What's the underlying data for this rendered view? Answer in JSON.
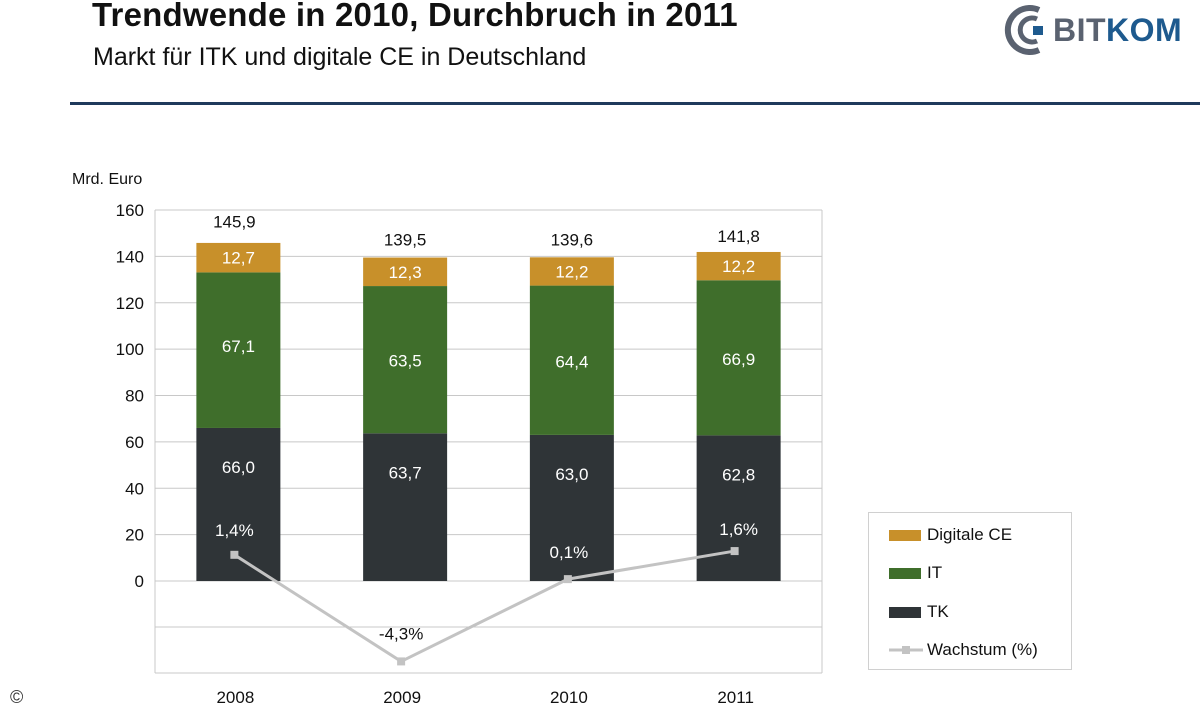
{
  "header": {
    "title": "Trendwende in 2010, Durchbruch in 2011",
    "subtitle": "Markt für ITK und digitale CE in Deutschland"
  },
  "logo": {
    "text_part1": "BIT",
    "text_part2": "KOM",
    "icon": "bitkom-logo-mark"
  },
  "copyright": "©",
  "colors": {
    "digitale_ce": "#c8902a",
    "it": "#3f6e2b",
    "tk": "#2f3437",
    "wachstum": "#c3c3c3",
    "rule": "#1f3a5c",
    "grid": "#c8c8c8"
  },
  "chart_data": {
    "type": "bar",
    "stacked": true,
    "ylabel": "Mrd. Euro",
    "categories": [
      "2008",
      "2009",
      "2010",
      "2011"
    ],
    "ylim": [
      -35,
      160
    ],
    "yticks": [
      "0",
      "20",
      "40",
      "60",
      "80",
      "100",
      "120",
      "140",
      "160"
    ],
    "series": [
      {
        "name": "TK",
        "values": [
          66.0,
          63.7,
          63.0,
          62.8
        ],
        "labels": [
          "66,0",
          "63,7",
          "63,0",
          "62,8"
        ]
      },
      {
        "name": "IT",
        "values": [
          67.1,
          63.5,
          64.4,
          66.9
        ],
        "labels": [
          "67,1",
          "63,5",
          "64,4",
          "66,9"
        ]
      },
      {
        "name": "Digitale CE",
        "values": [
          12.7,
          12.3,
          12.2,
          12.2
        ],
        "labels": [
          "12,7",
          "12,3",
          "12,2",
          "12,2"
        ]
      }
    ],
    "totals": [
      145.9,
      139.5,
      139.6,
      141.8
    ],
    "total_labels": [
      "145,9",
      "139,5",
      "139,6",
      "141,8"
    ],
    "growth": {
      "name": "Wachstum (%)",
      "values": [
        1.4,
        -4.3,
        0.1,
        1.6
      ],
      "labels": [
        "1,4%",
        "-4,3%",
        "0,1%",
        "1,6%"
      ]
    },
    "legend": {
      "position": "right",
      "items": [
        "Digitale CE",
        "IT",
        "TK",
        "Wachstum (%)"
      ]
    },
    "grid": true
  }
}
